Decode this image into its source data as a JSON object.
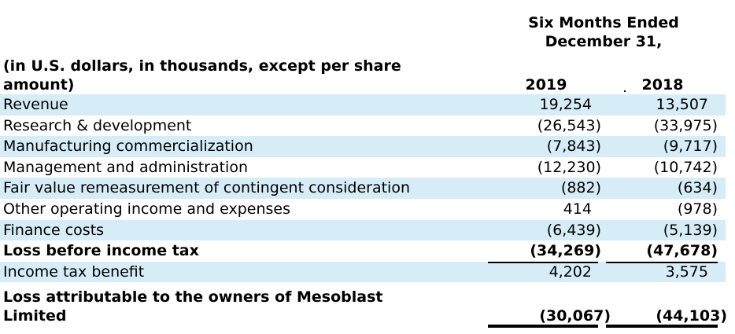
{
  "header": {
    "period_line1": "Six Months Ended",
    "period_line2": "December 31,",
    "units": "(in U.S. dollars, in thousands, except per share amount)",
    "year1": "2019",
    "year2": "2018"
  },
  "rows": [
    {
      "label": "Revenue",
      "v2019": "19,254",
      "v2018": "13,507"
    },
    {
      "label": "Research & development",
      "v2019": "(26,543)",
      "v2018": "(33,975)"
    },
    {
      "label": "Manufacturing commercialization",
      "v2019": "(7,843)",
      "v2018": "(9,717)"
    },
    {
      "label": "Management and administration",
      "v2019": "(12,230)",
      "v2018": "(10,742)"
    },
    {
      "label": "Fair value remeasurement of contingent consideration",
      "v2019": "(882)",
      "v2018": "(634)"
    },
    {
      "label": "Other operating income and expenses",
      "v2019": "414",
      "v2018": "(978)"
    },
    {
      "label": "Finance costs",
      "v2019": "(6,439)",
      "v2018": "(5,139)"
    },
    {
      "label": "Loss before income tax",
      "v2019": "(34,269)",
      "v2018": "(47,678)"
    },
    {
      "label": "Income tax benefit",
      "v2019": "4,202",
      "v2018": "3,575"
    }
  ],
  "total": {
    "label": "Loss attributable to the owners of Mesoblast Limited",
    "v2019": "(30,067)",
    "v2018": "(44,103)"
  }
}
